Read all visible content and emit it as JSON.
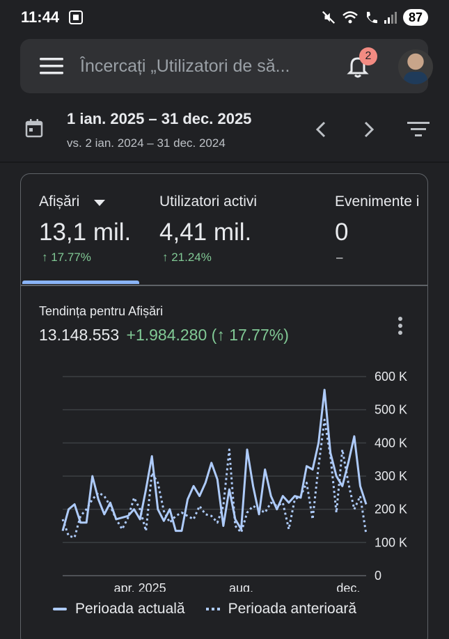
{
  "status": {
    "time": "11:44",
    "battery": "87"
  },
  "search": {
    "placeholder": "Încercați „Utilizatori de să...",
    "notifications": "2"
  },
  "date": {
    "range": "1 ian. 2025 – 31 dec. 2025",
    "compare": "vs. 2 ian. 2024 – 31 dec. 2024"
  },
  "metrics": [
    {
      "label": "Afișări",
      "value": "13,1 mil.",
      "change": "↑ 17.77%"
    },
    {
      "label": "Utilizatori activi",
      "value": "4,41 mil.",
      "change": "↑ 21.24%"
    },
    {
      "label": "Evenimente i",
      "value": "0",
      "change": "–"
    }
  ],
  "trend": {
    "title": "Tendința pentru Afișări",
    "total": "13.148.553",
    "delta": "+1.984.280 (↑ 17.77%)"
  },
  "colors": {
    "current": "#aecbfa",
    "previous": "#aecbfa",
    "positive": "#81c995",
    "accent": "#8ab4f8"
  },
  "chart_data": {
    "type": "line",
    "title": "Tendința pentru Afișări",
    "x_tick_labels": [
      "apr. 2025",
      "aug.",
      "dec."
    ],
    "x_tick_weeks": [
      13,
      30,
      48
    ],
    "y_tick_labels": [
      "0",
      "100 K",
      "200 K",
      "300 K",
      "400 K",
      "500 K",
      "600 K"
    ],
    "ylim": [
      0,
      600000
    ],
    "x_unit": "week",
    "grid": true,
    "legend_position": "bottom",
    "series": [
      {
        "name": "Perioada actuală",
        "style": "solid",
        "values": [
          135000,
          200000,
          215000,
          160000,
          160000,
          300000,
          230000,
          185000,
          220000,
          170000,
          175000,
          180000,
          200000,
          170000,
          260000,
          360000,
          200000,
          165000,
          200000,
          135000,
          135000,
          230000,
          270000,
          240000,
          280000,
          340000,
          290000,
          150000,
          260000,
          170000,
          140000,
          380000,
          270000,
          185000,
          320000,
          240000,
          200000,
          240000,
          220000,
          240000,
          235000,
          330000,
          320000,
          400000,
          560000,
          370000,
          300000,
          270000,
          340000,
          420000,
          270000,
          215000
        ]
      },
      {
        "name": "Perioada anterioară",
        "style": "dotted",
        "values": [
          170000,
          120000,
          115000,
          180000,
          200000,
          230000,
          250000,
          240000,
          210000,
          170000,
          140000,
          175000,
          235000,
          200000,
          135000,
          310000,
          280000,
          195000,
          160000,
          180000,
          190000,
          180000,
          170000,
          210000,
          185000,
          180000,
          160000,
          210000,
          380000,
          150000,
          130000,
          190000,
          210000,
          200000,
          190000,
          220000,
          210000,
          220000,
          140000,
          230000,
          240000,
          280000,
          170000,
          330000,
          470000,
          360000,
          190000,
          380000,
          280000,
          200000,
          240000,
          125000
        ]
      }
    ]
  }
}
